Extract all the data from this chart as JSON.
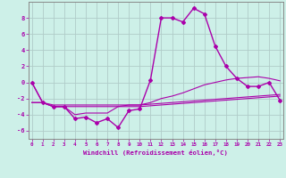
{
  "xlabel": "Windchill (Refroidissement éolien,°C)",
  "bg_color": "#cdf0e8",
  "grid_color": "#b0ccc8",
  "line_color": "#aa00aa",
  "x_hours": [
    0,
    1,
    2,
    3,
    4,
    5,
    6,
    7,
    8,
    9,
    10,
    11,
    12,
    13,
    14,
    15,
    16,
    17,
    18,
    19,
    20,
    21,
    22,
    23
  ],
  "windchill": [
    0,
    -2.5,
    -3,
    -3,
    -4.5,
    -4.3,
    -5.0,
    -4.5,
    -5.6,
    -3.5,
    -3.3,
    0.3,
    8.0,
    8.0,
    7.5,
    9.2,
    8.5,
    4.5,
    2.0,
    0.5,
    -0.5,
    -0.5,
    0.0,
    -2.2
  ],
  "line2": [
    0.0,
    -2.5,
    -3.0,
    -3.0,
    -4.0,
    -3.8,
    -3.8,
    -3.8,
    -3.0,
    -2.8,
    -2.8,
    -2.5,
    -2.0,
    -1.7,
    -1.3,
    -0.8,
    -0.3,
    0.0,
    0.3,
    0.5,
    0.6,
    0.7,
    0.5,
    0.2
  ],
  "line3": [
    -2.5,
    -2.5,
    -2.8,
    -2.8,
    -2.8,
    -2.8,
    -2.8,
    -2.8,
    -2.8,
    -2.8,
    -2.8,
    -2.7,
    -2.6,
    -2.5,
    -2.4,
    -2.3,
    -2.2,
    -2.1,
    -2.0,
    -1.9,
    -1.8,
    -1.7,
    -1.6,
    -1.5
  ],
  "line4": [
    -2.5,
    -2.5,
    -3.0,
    -3.0,
    -3.0,
    -3.0,
    -3.0,
    -3.0,
    -3.0,
    -3.0,
    -3.0,
    -2.9,
    -2.8,
    -2.7,
    -2.6,
    -2.5,
    -2.4,
    -2.3,
    -2.2,
    -2.1,
    -2.0,
    -1.9,
    -1.8,
    -1.7
  ],
  "ylim": [
    -7,
    10
  ],
  "yticks": [
    -6,
    -4,
    -2,
    0,
    2,
    4,
    6,
    8
  ],
  "xticks": [
    0,
    1,
    2,
    3,
    4,
    5,
    6,
    7,
    8,
    9,
    10,
    11,
    12,
    13,
    14,
    15,
    16,
    17,
    18,
    19,
    20,
    21,
    22,
    23
  ],
  "xtick_labels": [
    "0",
    "1",
    "2",
    "3",
    "4",
    "5",
    "6",
    "7",
    "8",
    "9",
    "10",
    "11",
    "12",
    "13",
    "14",
    "15",
    "16",
    "17",
    "18",
    "19",
    "20",
    "21",
    "22",
    "23"
  ]
}
